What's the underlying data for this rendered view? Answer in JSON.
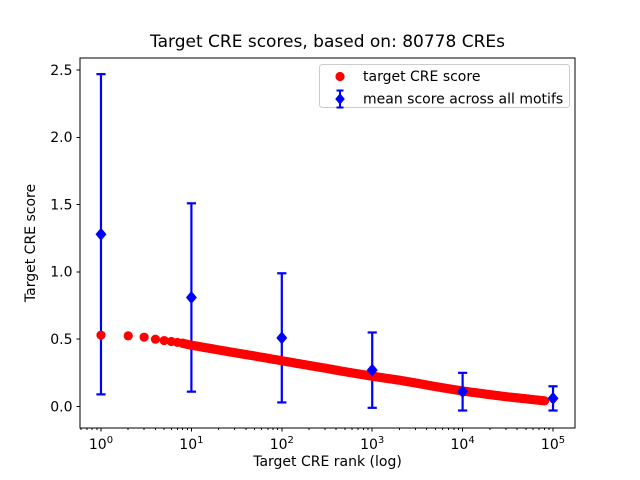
{
  "figure": {
    "background": "#ffffff"
  },
  "chart_data": {
    "type": "scatter",
    "title": "Target CRE scores, based on: 80778 CREs",
    "xlabel": "Target CRE rank (log)",
    "ylabel": "Target CRE score",
    "x_scale": "log",
    "xlim": [
      0.586,
      175000
    ],
    "ylim": [
      -0.16,
      2.59
    ],
    "grid": false,
    "legend_position": "upper right",
    "x_ticks": [
      {
        "value": 1,
        "label": "10",
        "exp": "0"
      },
      {
        "value": 10,
        "label": "10",
        "exp": "1"
      },
      {
        "value": 100,
        "label": "10",
        "exp": "2"
      },
      {
        "value": 1000,
        "label": "10",
        "exp": "3"
      },
      {
        "value": 10000,
        "label": "10",
        "exp": "4"
      },
      {
        "value": 100000,
        "label": "10",
        "exp": "5"
      }
    ],
    "y_ticks": [
      {
        "value": 0.0,
        "label": "0.0"
      },
      {
        "value": 0.5,
        "label": "0.5"
      },
      {
        "value": 1.0,
        "label": "1.0"
      },
      {
        "value": 1.5,
        "label": "1.5"
      },
      {
        "value": 2.0,
        "label": "2.0"
      },
      {
        "value": 2.5,
        "label": "2.5"
      }
    ],
    "series": [
      {
        "name": "target CRE score",
        "color": "#ff0000",
        "marker": "circle",
        "n_points": 80778,
        "x": [
          1,
          2,
          3,
          4,
          5,
          6,
          7,
          8,
          10,
          15,
          20,
          30,
          50,
          70,
          100,
          200,
          300,
          500,
          1000,
          2000,
          3000,
          5000,
          10000,
          20000,
          30000,
          50000,
          80778
        ],
        "y": [
          0.53,
          0.525,
          0.515,
          0.5,
          0.49,
          0.483,
          0.476,
          0.47,
          0.455,
          0.435,
          0.42,
          0.4,
          0.375,
          0.358,
          0.34,
          0.305,
          0.285,
          0.258,
          0.225,
          0.195,
          0.175,
          0.148,
          0.115,
          0.088,
          0.073,
          0.057,
          0.042
        ]
      },
      {
        "name": "mean score across all motifs",
        "color": "#0000ff",
        "marker": "diamond",
        "x": [
          1,
          10,
          100,
          1000,
          10000,
          100000
        ],
        "y": [
          1.28,
          0.81,
          0.51,
          0.27,
          0.11,
          0.06
        ],
        "err_upper": [
          2.47,
          1.51,
          0.99,
          0.55,
          0.25,
          0.15
        ],
        "err_lower": [
          0.09,
          0.11,
          0.03,
          -0.01,
          -0.03,
          -0.03
        ]
      }
    ]
  }
}
